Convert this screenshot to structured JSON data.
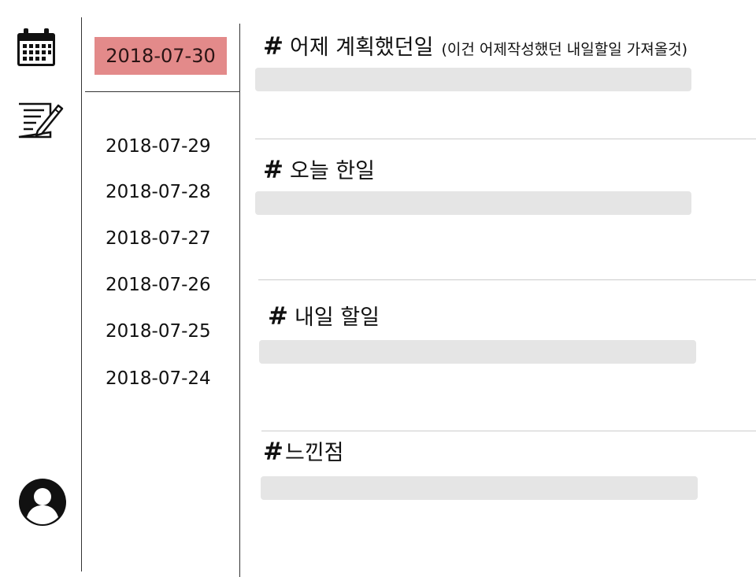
{
  "sidebar": {
    "icons": [
      "calendar-icon",
      "edit-note-icon",
      "user-avatar-icon"
    ]
  },
  "dates": {
    "selected": "2018-07-30",
    "items": [
      "2018-07-29",
      "2018-07-28",
      "2018-07-27",
      "2018-07-26",
      "2018-07-25",
      "2018-07-24"
    ]
  },
  "sections": [
    {
      "hash": "#",
      "title": "어제 계획했던일",
      "note": "(이건 어제작성했던 내일할일 가져올것)",
      "value": ""
    },
    {
      "hash": "#",
      "title": "오늘 한일",
      "value": ""
    },
    {
      "hash": "#",
      "title": "내일 할일",
      "value": ""
    },
    {
      "hash": "#",
      "title": "느낀점",
      "value": ""
    }
  ],
  "colors": {
    "selected_date_bg": "#e38a8a",
    "field_bg": "#e5e5e5",
    "divider": "#cccccc"
  }
}
